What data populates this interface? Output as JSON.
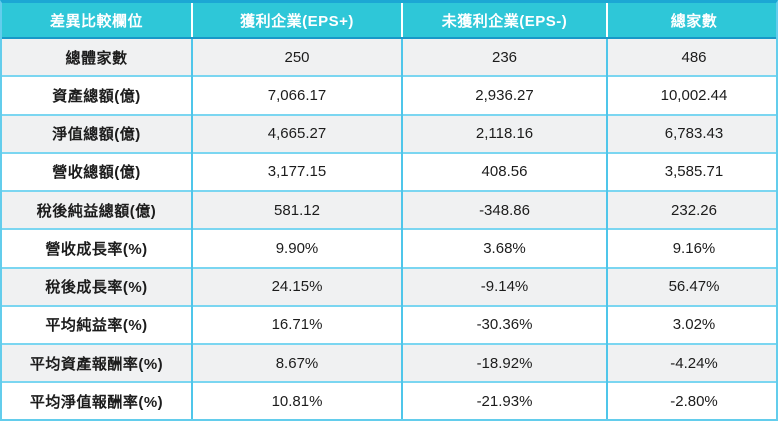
{
  "colors": {
    "header_bg": "#2EC7D8",
    "header_text": "#FFFFFF",
    "top_border": "#1CA7D4",
    "outer_border": "#63CDEC",
    "header_bottom_border": "#1898C8",
    "row_divider": "#7BD6F1",
    "column_divider": "#4FC6EA",
    "header_column_divider": "#FFFFFF",
    "stripe_bg": "#F0F1F2",
    "body_text": "#1C1C1C"
  },
  "chart_data": {
    "type": "table",
    "columns": [
      "差異比較欄位",
      "獲利企業(EPS+)",
      "未獲利企業(EPS-)",
      "總家數"
    ],
    "rows": [
      [
        "總體家數",
        "250",
        "236",
        "486"
      ],
      [
        "資產總額(億)",
        "7,066.17",
        "2,936.27",
        "10,002.44"
      ],
      [
        "淨值總額(億)",
        "4,665.27",
        "2,118.16",
        "6,783.43"
      ],
      [
        "營收總額(億)",
        "3,177.15",
        "408.56",
        "3,585.71"
      ],
      [
        "稅後純益總額(億)",
        "581.12",
        "-348.86",
        "232.26"
      ],
      [
        "營收成長率(%)",
        "9.90%",
        "3.68%",
        "9.16%"
      ],
      [
        "稅後成長率(%)",
        "24.15%",
        "-9.14%",
        "56.47%"
      ],
      [
        "平均純益率(%)",
        "16.71%",
        "-30.36%",
        "3.02%"
      ],
      [
        "平均資產報酬率(%)",
        "8.67%",
        "-18.92%",
        "-4.24%"
      ],
      [
        "平均淨值報酬率(%)",
        "10.81%",
        "-21.93%",
        "-2.80%"
      ]
    ]
  }
}
